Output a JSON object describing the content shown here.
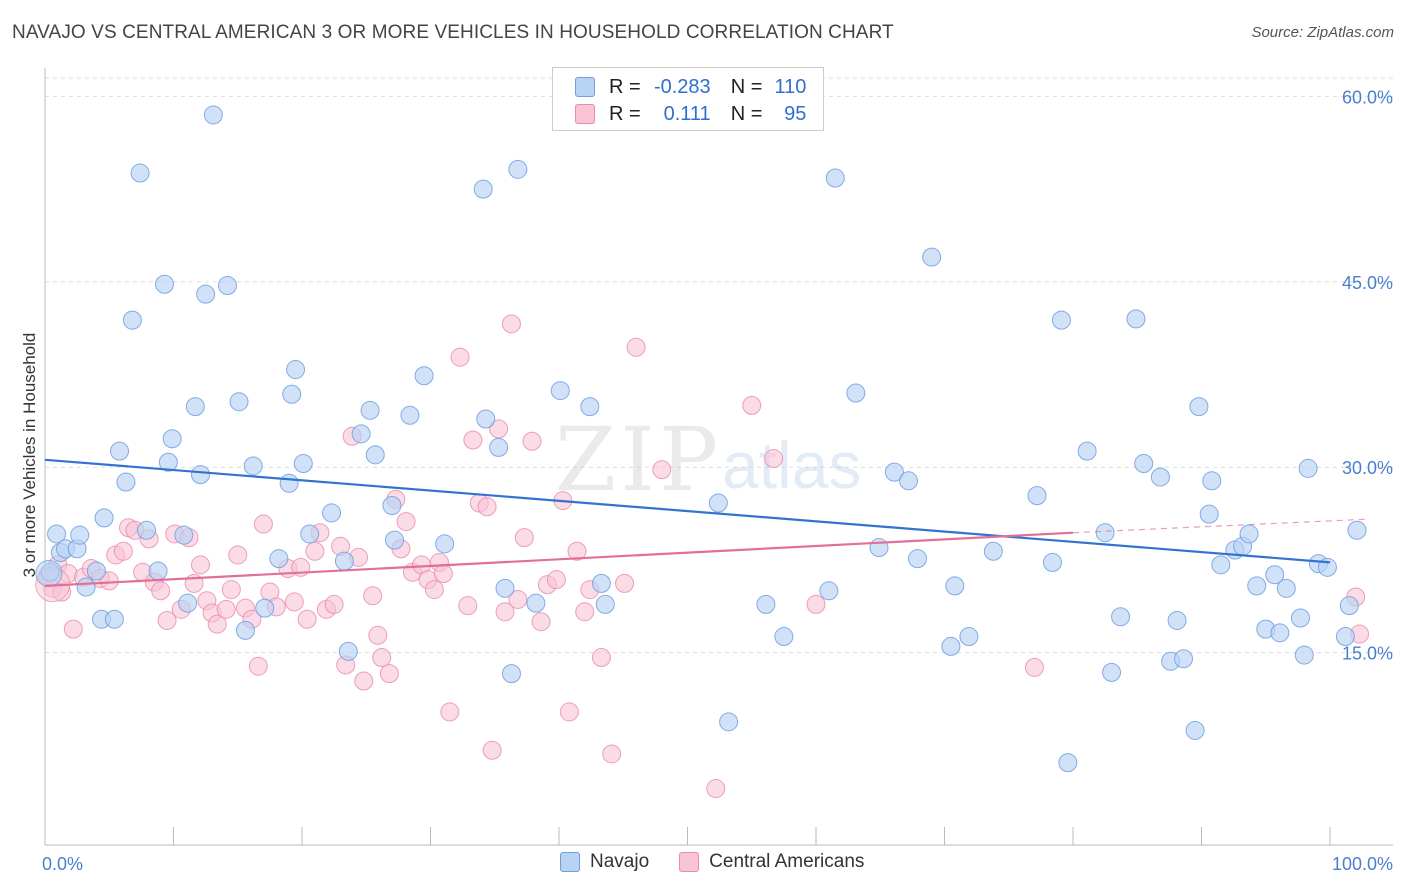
{
  "header": {
    "title": "NAVAJO VS CENTRAL AMERICAN 3 OR MORE VEHICLES IN HOUSEHOLD CORRELATION CHART",
    "source": "Source: ZipAtlas.com"
  },
  "legend": {
    "rows": [
      {
        "r_label": "R =",
        "r_value": "-0.283",
        "n_label": "N =",
        "n_value": "110"
      },
      {
        "r_label": "R =",
        "r_value": "0.111",
        "n_label": "N =",
        "n_value": "95"
      }
    ],
    "bottom": [
      "Navajo",
      "Central Americans"
    ]
  },
  "colors": {
    "navajo_fill": "#b8d3f4",
    "navajo_stroke": "#6f9fe0",
    "navajo_line": "#3373d0",
    "central_fill": "#f8c3d4",
    "central_stroke": "#e88aab",
    "central_line": "#e0709a",
    "tick_text": "#4a7fd0"
  },
  "watermark": {
    "zip": "ZIP",
    "atlas": "atlas"
  },
  "chart_data": {
    "type": "scatter",
    "title": "NAVAJO VS CENTRAL AMERICAN 3 OR MORE VEHICLES IN HOUSEHOLD CORRELATION CHART",
    "xlabel": "",
    "ylabel": "3 or more Vehicles in Household",
    "xlim": [
      0,
      100
    ],
    "ylim": [
      0,
      63
    ],
    "x_tick_labels": [
      "0.0%",
      "100.0%"
    ],
    "y_ticks": [
      15,
      30,
      45,
      60
    ],
    "y_tick_labels": [
      "15.0%",
      "30.0%",
      "45.0%",
      "60.0%"
    ],
    "grid": "horizontal dashed",
    "legend_position": "top-center",
    "series": [
      {
        "name": "Navajo",
        "trend": {
          "x": [
            0,
            100
          ],
          "y": [
            30.6,
            22.3
          ]
        },
        "points": [
          [
            0.4,
            21.5
          ],
          [
            0.9,
            24.6
          ],
          [
            1.2,
            23.1
          ],
          [
            1.6,
            23.4
          ],
          [
            2.5,
            23.4
          ],
          [
            2.7,
            24.5
          ],
          [
            3.2,
            20.3
          ],
          [
            4.0,
            21.6
          ],
          [
            4.4,
            17.7
          ],
          [
            4.6,
            25.9
          ],
          [
            5.4,
            17.7
          ],
          [
            5.8,
            31.3
          ],
          [
            6.3,
            28.8
          ],
          [
            6.8,
            41.9
          ],
          [
            7.4,
            53.8
          ],
          [
            7.9,
            24.9
          ],
          [
            8.8,
            21.6
          ],
          [
            9.3,
            44.8
          ],
          [
            9.6,
            30.4
          ],
          [
            9.9,
            32.3
          ],
          [
            10.8,
            24.5
          ],
          [
            11.1,
            19.0
          ],
          [
            11.7,
            34.9
          ],
          [
            12.1,
            29.4
          ],
          [
            12.5,
            44.0
          ],
          [
            13.1,
            58.5
          ],
          [
            14.2,
            44.7
          ],
          [
            15.1,
            35.3
          ],
          [
            15.6,
            16.8
          ],
          [
            16.2,
            30.1
          ],
          [
            17.1,
            18.6
          ],
          [
            18.2,
            22.6
          ],
          [
            19.0,
            28.7
          ],
          [
            19.2,
            35.9
          ],
          [
            19.5,
            37.9
          ],
          [
            20.1,
            30.3
          ],
          [
            20.6,
            24.6
          ],
          [
            22.3,
            26.3
          ],
          [
            23.3,
            22.4
          ],
          [
            23.6,
            15.1
          ],
          [
            24.6,
            32.7
          ],
          [
            25.3,
            34.6
          ],
          [
            25.7,
            31.0
          ],
          [
            27.0,
            26.9
          ],
          [
            27.2,
            24.1
          ],
          [
            28.4,
            34.2
          ],
          [
            29.5,
            37.4
          ],
          [
            31.1,
            23.8
          ],
          [
            34.1,
            52.5
          ],
          [
            34.3,
            33.9
          ],
          [
            35.3,
            31.6
          ],
          [
            35.8,
            20.2
          ],
          [
            36.3,
            13.3
          ],
          [
            36.8,
            54.1
          ],
          [
            38.2,
            19.0
          ],
          [
            40.1,
            36.2
          ],
          [
            42.4,
            34.9
          ],
          [
            43.3,
            20.6
          ],
          [
            43.6,
            18.9
          ],
          [
            52.4,
            27.1
          ],
          [
            53.2,
            9.4
          ],
          [
            56.1,
            18.9
          ],
          [
            57.5,
            16.3
          ],
          [
            61.0,
            20.0
          ],
          [
            61.5,
            53.4
          ],
          [
            63.1,
            36.0
          ],
          [
            64.9,
            23.5
          ],
          [
            66.1,
            29.6
          ],
          [
            67.2,
            28.9
          ],
          [
            67.9,
            22.6
          ],
          [
            69.0,
            47.0
          ],
          [
            70.5,
            15.5
          ],
          [
            70.8,
            20.4
          ],
          [
            71.9,
            16.3
          ],
          [
            73.8,
            23.2
          ],
          [
            77.2,
            27.7
          ],
          [
            78.4,
            22.3
          ],
          [
            79.1,
            41.9
          ],
          [
            79.6,
            6.1
          ],
          [
            81.1,
            31.3
          ],
          [
            82.5,
            24.7
          ],
          [
            83.0,
            13.4
          ],
          [
            83.7,
            17.9
          ],
          [
            84.9,
            42.0
          ],
          [
            85.5,
            30.3
          ],
          [
            86.8,
            29.2
          ],
          [
            87.6,
            14.3
          ],
          [
            88.1,
            17.6
          ],
          [
            88.6,
            14.5
          ],
          [
            89.5,
            8.7
          ],
          [
            89.8,
            34.9
          ],
          [
            90.6,
            26.2
          ],
          [
            90.8,
            28.9
          ],
          [
            91.5,
            22.1
          ],
          [
            92.6,
            23.3
          ],
          [
            93.2,
            23.6
          ],
          [
            93.7,
            24.6
          ],
          [
            94.3,
            20.4
          ],
          [
            95.0,
            16.9
          ],
          [
            95.7,
            21.3
          ],
          [
            96.1,
            16.6
          ],
          [
            96.6,
            20.2
          ],
          [
            97.7,
            17.8
          ],
          [
            98.0,
            14.8
          ],
          [
            98.3,
            29.9
          ],
          [
            99.1,
            22.2
          ],
          [
            99.8,
            21.9
          ],
          [
            101.2,
            16.3
          ],
          [
            101.5,
            18.8
          ],
          [
            102.1,
            24.9
          ]
        ]
      },
      {
        "name": "Central Americans",
        "trend": {
          "x": [
            0,
            80
          ],
          "y": [
            20.4,
            24.7
          ]
        },
        "trend_dashed": {
          "x": [
            80,
            103
          ],
          "y": [
            24.7,
            25.8
          ]
        },
        "points": [
          [
            0.2,
            21.2
          ],
          [
            0.6,
            20.2
          ],
          [
            1.0,
            22.1
          ],
          [
            1.3,
            19.9
          ],
          [
            1.8,
            21.4
          ],
          [
            2.2,
            16.9
          ],
          [
            3.0,
            21.1
          ],
          [
            3.6,
            21.8
          ],
          [
            4.3,
            21.0
          ],
          [
            5.0,
            20.8
          ],
          [
            5.5,
            22.9
          ],
          [
            6.1,
            23.2
          ],
          [
            6.5,
            25.1
          ],
          [
            7.0,
            24.9
          ],
          [
            7.6,
            21.5
          ],
          [
            8.1,
            24.2
          ],
          [
            8.5,
            20.7
          ],
          [
            9.0,
            20.0
          ],
          [
            9.5,
            17.6
          ],
          [
            10.1,
            24.6
          ],
          [
            10.6,
            18.5
          ],
          [
            11.2,
            24.3
          ],
          [
            11.6,
            20.6
          ],
          [
            12.1,
            22.1
          ],
          [
            12.6,
            19.2
          ],
          [
            13.0,
            18.2
          ],
          [
            13.4,
            17.3
          ],
          [
            14.1,
            18.5
          ],
          [
            14.5,
            20.1
          ],
          [
            15.0,
            22.9
          ],
          [
            15.6,
            18.6
          ],
          [
            16.1,
            17.7
          ],
          [
            16.6,
            13.9
          ],
          [
            17.0,
            25.4
          ],
          [
            17.5,
            19.9
          ],
          [
            18.0,
            18.7
          ],
          [
            18.9,
            21.8
          ],
          [
            19.4,
            19.1
          ],
          [
            19.9,
            21.9
          ],
          [
            20.4,
            17.7
          ],
          [
            21.0,
            23.2
          ],
          [
            21.4,
            24.7
          ],
          [
            21.9,
            18.5
          ],
          [
            22.5,
            18.9
          ],
          [
            23.0,
            23.6
          ],
          [
            23.4,
            14.0
          ],
          [
            23.9,
            32.5
          ],
          [
            24.4,
            22.7
          ],
          [
            24.8,
            12.7
          ],
          [
            25.5,
            19.6
          ],
          [
            25.9,
            16.4
          ],
          [
            26.2,
            14.6
          ],
          [
            26.8,
            13.3
          ],
          [
            27.3,
            27.4
          ],
          [
            27.7,
            23.4
          ],
          [
            28.1,
            25.6
          ],
          [
            28.6,
            21.5
          ],
          [
            29.3,
            22.1
          ],
          [
            29.8,
            20.9
          ],
          [
            30.3,
            20.1
          ],
          [
            30.7,
            22.3
          ],
          [
            31.0,
            21.4
          ],
          [
            31.5,
            10.2
          ],
          [
            32.3,
            38.9
          ],
          [
            32.9,
            18.8
          ],
          [
            33.3,
            32.2
          ],
          [
            33.8,
            27.1
          ],
          [
            34.4,
            26.8
          ],
          [
            34.8,
            7.1
          ],
          [
            35.3,
            33.1
          ],
          [
            35.8,
            18.3
          ],
          [
            36.3,
            41.6
          ],
          [
            36.8,
            19.3
          ],
          [
            37.3,
            24.3
          ],
          [
            37.9,
            32.1
          ],
          [
            38.6,
            17.5
          ],
          [
            39.1,
            20.5
          ],
          [
            39.8,
            20.9
          ],
          [
            40.3,
            27.3
          ],
          [
            40.8,
            10.2
          ],
          [
            41.4,
            23.2
          ],
          [
            42.0,
            18.3
          ],
          [
            42.4,
            20.1
          ],
          [
            43.3,
            14.6
          ],
          [
            44.1,
            6.8
          ],
          [
            45.1,
            20.6
          ],
          [
            46.0,
            39.7
          ],
          [
            48.0,
            29.8
          ],
          [
            52.2,
            4.0
          ],
          [
            55.0,
            35.0
          ],
          [
            56.7,
            30.7
          ],
          [
            60.0,
            18.9
          ],
          [
            77.0,
            13.8
          ],
          [
            102.0,
            19.5
          ],
          [
            102.3,
            16.5
          ]
        ]
      }
    ]
  }
}
